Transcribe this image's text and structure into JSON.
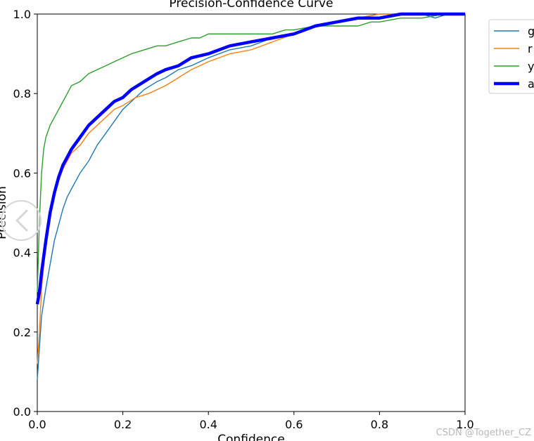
{
  "chart_data": {
    "type": "line",
    "title": "Precision-Confidence Curve",
    "xlabel": "Confidence",
    "ylabel": "Precision",
    "xlim": [
      0,
      1
    ],
    "ylim": [
      0,
      1
    ],
    "x_ticks": [
      "0.0",
      "0.2",
      "0.4",
      "0.6",
      "0.8",
      "1.0"
    ],
    "y_ticks": [
      "0.0",
      "0.2",
      "0.4",
      "0.6",
      "0.8",
      "1.0"
    ],
    "grid": false,
    "legend_position": "outside-top-right",
    "series": [
      {
        "name": "g",
        "color": "#1f77b4",
        "points": [
          [
            0,
            0.08
          ],
          [
            0.01,
            0.24
          ],
          [
            0.02,
            0.31
          ],
          [
            0.03,
            0.37
          ],
          [
            0.04,
            0.43
          ],
          [
            0.05,
            0.47
          ],
          [
            0.06,
            0.51
          ],
          [
            0.07,
            0.54
          ],
          [
            0.08,
            0.56
          ],
          [
            0.09,
            0.58
          ],
          [
            0.1,
            0.6
          ],
          [
            0.12,
            0.63
          ],
          [
            0.14,
            0.67
          ],
          [
            0.16,
            0.7
          ],
          [
            0.18,
            0.73
          ],
          [
            0.2,
            0.76
          ],
          [
            0.22,
            0.78
          ],
          [
            0.25,
            0.81
          ],
          [
            0.28,
            0.83
          ],
          [
            0.3,
            0.84
          ],
          [
            0.33,
            0.86
          ],
          [
            0.36,
            0.87
          ],
          [
            0.4,
            0.89
          ],
          [
            0.45,
            0.91
          ],
          [
            0.5,
            0.92
          ],
          [
            0.55,
            0.94
          ],
          [
            0.6,
            0.95
          ],
          [
            0.65,
            0.97
          ],
          [
            0.7,
            0.98
          ],
          [
            0.75,
            0.99
          ],
          [
            0.8,
            1.0
          ],
          [
            0.85,
            1.0
          ],
          [
            0.9,
            1.0
          ],
          [
            0.93,
            0.99
          ],
          [
            0.96,
            1.0
          ],
          [
            1.0,
            1.0
          ]
        ]
      },
      {
        "name": "r",
        "color": "#ff7f0e",
        "points": [
          [
            0,
            0.12
          ],
          [
            0.005,
            0.2
          ],
          [
            0.01,
            0.31
          ],
          [
            0.02,
            0.42
          ],
          [
            0.03,
            0.5
          ],
          [
            0.04,
            0.55
          ],
          [
            0.05,
            0.58
          ],
          [
            0.06,
            0.61
          ],
          [
            0.07,
            0.63
          ],
          [
            0.08,
            0.65
          ],
          [
            0.1,
            0.67
          ],
          [
            0.12,
            0.7
          ],
          [
            0.14,
            0.72
          ],
          [
            0.16,
            0.74
          ],
          [
            0.18,
            0.76
          ],
          [
            0.2,
            0.77
          ],
          [
            0.23,
            0.79
          ],
          [
            0.26,
            0.8
          ],
          [
            0.3,
            0.82
          ],
          [
            0.33,
            0.84
          ],
          [
            0.36,
            0.86
          ],
          [
            0.4,
            0.88
          ],
          [
            0.45,
            0.9
          ],
          [
            0.5,
            0.91
          ],
          [
            0.55,
            0.93
          ],
          [
            0.6,
            0.95
          ],
          [
            0.65,
            0.97
          ],
          [
            0.7,
            0.98
          ],
          [
            0.75,
            0.99
          ],
          [
            0.8,
            1.0
          ],
          [
            0.9,
            1.0
          ],
          [
            1.0,
            1.0
          ]
        ]
      },
      {
        "name": "y",
        "color": "#2ca02c",
        "points": [
          [
            0,
            0.3
          ],
          [
            0.005,
            0.48
          ],
          [
            0.01,
            0.6
          ],
          [
            0.015,
            0.66
          ],
          [
            0.02,
            0.69
          ],
          [
            0.03,
            0.72
          ],
          [
            0.04,
            0.74
          ],
          [
            0.05,
            0.76
          ],
          [
            0.06,
            0.78
          ],
          [
            0.07,
            0.8
          ],
          [
            0.08,
            0.82
          ],
          [
            0.1,
            0.83
          ],
          [
            0.12,
            0.85
          ],
          [
            0.14,
            0.86
          ],
          [
            0.16,
            0.87
          ],
          [
            0.18,
            0.88
          ],
          [
            0.2,
            0.89
          ],
          [
            0.22,
            0.9
          ],
          [
            0.25,
            0.91
          ],
          [
            0.28,
            0.92
          ],
          [
            0.3,
            0.92
          ],
          [
            0.33,
            0.93
          ],
          [
            0.36,
            0.94
          ],
          [
            0.38,
            0.94
          ],
          [
            0.4,
            0.95
          ],
          [
            0.45,
            0.95
          ],
          [
            0.5,
            0.95
          ],
          [
            0.55,
            0.95
          ],
          [
            0.58,
            0.96
          ],
          [
            0.6,
            0.96
          ],
          [
            0.65,
            0.97
          ],
          [
            0.7,
            0.97
          ],
          [
            0.75,
            0.97
          ],
          [
            0.78,
            0.98
          ],
          [
            0.8,
            0.98
          ],
          [
            0.85,
            0.99
          ],
          [
            0.9,
            0.99
          ],
          [
            0.95,
            1.0
          ],
          [
            1.0,
            1.0
          ]
        ]
      },
      {
        "name": "a",
        "color": "#0000ff",
        "thick": true,
        "points": [
          [
            0,
            0.27
          ],
          [
            0.005,
            0.3
          ],
          [
            0.01,
            0.35
          ],
          [
            0.02,
            0.43
          ],
          [
            0.03,
            0.5
          ],
          [
            0.04,
            0.55
          ],
          [
            0.05,
            0.59
          ],
          [
            0.06,
            0.62
          ],
          [
            0.07,
            0.64
          ],
          [
            0.08,
            0.66
          ],
          [
            0.1,
            0.69
          ],
          [
            0.12,
            0.72
          ],
          [
            0.14,
            0.74
          ],
          [
            0.16,
            0.76
          ],
          [
            0.18,
            0.78
          ],
          [
            0.2,
            0.79
          ],
          [
            0.22,
            0.81
          ],
          [
            0.25,
            0.83
          ],
          [
            0.28,
            0.85
          ],
          [
            0.3,
            0.86
          ],
          [
            0.33,
            0.87
          ],
          [
            0.36,
            0.89
          ],
          [
            0.4,
            0.9
          ],
          [
            0.45,
            0.92
          ],
          [
            0.5,
            0.93
          ],
          [
            0.55,
            0.94
          ],
          [
            0.6,
            0.95
          ],
          [
            0.65,
            0.97
          ],
          [
            0.7,
            0.98
          ],
          [
            0.75,
            0.99
          ],
          [
            0.8,
            0.99
          ],
          [
            0.85,
            1.0
          ],
          [
            0.9,
            1.0
          ],
          [
            1.0,
            1.0
          ]
        ]
      }
    ]
  },
  "watermark": "CSDN @Together_CZ"
}
